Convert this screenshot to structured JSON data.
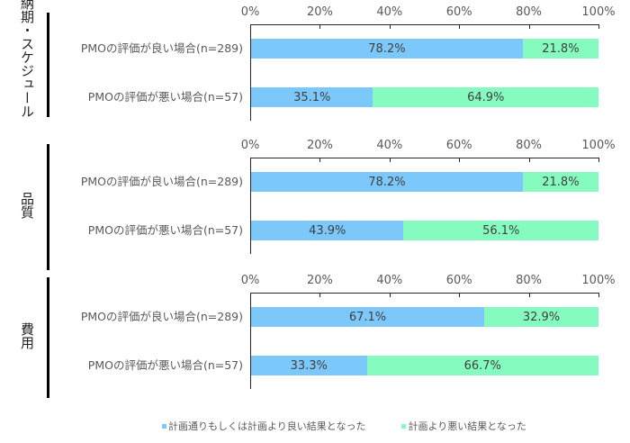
{
  "colors": {
    "good": "#7cc8fb",
    "bad": "#86fbbf"
  },
  "axis_ticks": [
    "0%",
    "20%",
    "40%",
    "60%",
    "80%",
    "100%"
  ],
  "legend": [
    {
      "label": "計画通りもしくは計画より良い結果となった",
      "color": "#7cc8fb"
    },
    {
      "label": "計画より悪い結果となった",
      "color": "#86fbbf"
    }
  ],
  "panels": [
    {
      "group": "納期・スケジュール",
      "rows": [
        {
          "label": "PMOの評価が良い場合(n=289)",
          "good": 78.2,
          "bad": 21.8,
          "good_label": "78.2%",
          "bad_label": "21.8%"
        },
        {
          "label": "PMOの評価が悪い場合(n=57)",
          "good": 35.1,
          "bad": 64.9,
          "good_label": "35.1%",
          "bad_label": "64.9%"
        }
      ]
    },
    {
      "group": "品質",
      "rows": [
        {
          "label": "PMOの評価が良い場合(n=289)",
          "good": 78.2,
          "bad": 21.8,
          "good_label": "78.2%",
          "bad_label": "21.8%"
        },
        {
          "label": "PMOの評価が悪い場合(n=57)",
          "good": 43.9,
          "bad": 56.1,
          "good_label": "43.9%",
          "bad_label": "56.1%"
        }
      ]
    },
    {
      "group": "費用",
      "rows": [
        {
          "label": "PMOの評価が良い場合(n=289)",
          "good": 67.1,
          "bad": 32.9,
          "good_label": "67.1%",
          "bad_label": "32.9%"
        },
        {
          "label": "PMOの評価が悪い場合(n=57)",
          "good": 33.3,
          "bad": 66.7,
          "good_label": "33.3%",
          "bad_label": "66.7%"
        }
      ]
    }
  ],
  "chart_data": [
    {
      "type": "bar",
      "orientation": "horizontal",
      "stacked": true,
      "title": "納期・スケジュール",
      "categories": [
        "PMOの評価が良い場合(n=289)",
        "PMOの評価が悪い場合(n=57)"
      ],
      "series": [
        {
          "name": "計画通りもしくは計画より良い結果となった",
          "values": [
            78.2,
            35.1
          ]
        },
        {
          "name": "計画より悪い結果となった",
          "values": [
            21.8,
            64.9
          ]
        }
      ],
      "xlim": [
        0,
        100
      ],
      "xticks": [
        "0%",
        "20%",
        "40%",
        "60%",
        "80%",
        "100%"
      ],
      "axis_position": "top",
      "grid": false,
      "legend_position": "bottom"
    },
    {
      "type": "bar",
      "orientation": "horizontal",
      "stacked": true,
      "title": "品質",
      "categories": [
        "PMOの評価が良い場合(n=289)",
        "PMOの評価が悪い場合(n=57)"
      ],
      "series": [
        {
          "name": "計画通りもしくは計画より良い結果となった",
          "values": [
            78.2,
            43.9
          ]
        },
        {
          "name": "計画より悪い結果となった",
          "values": [
            21.8,
            56.1
          ]
        }
      ],
      "xlim": [
        0,
        100
      ],
      "xticks": [
        "0%",
        "20%",
        "40%",
        "60%",
        "80%",
        "100%"
      ],
      "axis_position": "top",
      "grid": false,
      "legend_position": "bottom"
    },
    {
      "type": "bar",
      "orientation": "horizontal",
      "stacked": true,
      "title": "費用",
      "categories": [
        "PMOの評価が良い場合(n=289)",
        "PMOの評価が悪い場合(n=57)"
      ],
      "series": [
        {
          "name": "計画通りもしくは計画より良い結果となった",
          "values": [
            67.1,
            33.3
          ]
        },
        {
          "name": "計画より悪い結果となった",
          "values": [
            32.9,
            66.7
          ]
        }
      ],
      "xlim": [
        0,
        100
      ],
      "xticks": [
        "0%",
        "20%",
        "40%",
        "60%",
        "80%",
        "100%"
      ],
      "axis_position": "top",
      "grid": false,
      "legend_position": "bottom"
    }
  ]
}
